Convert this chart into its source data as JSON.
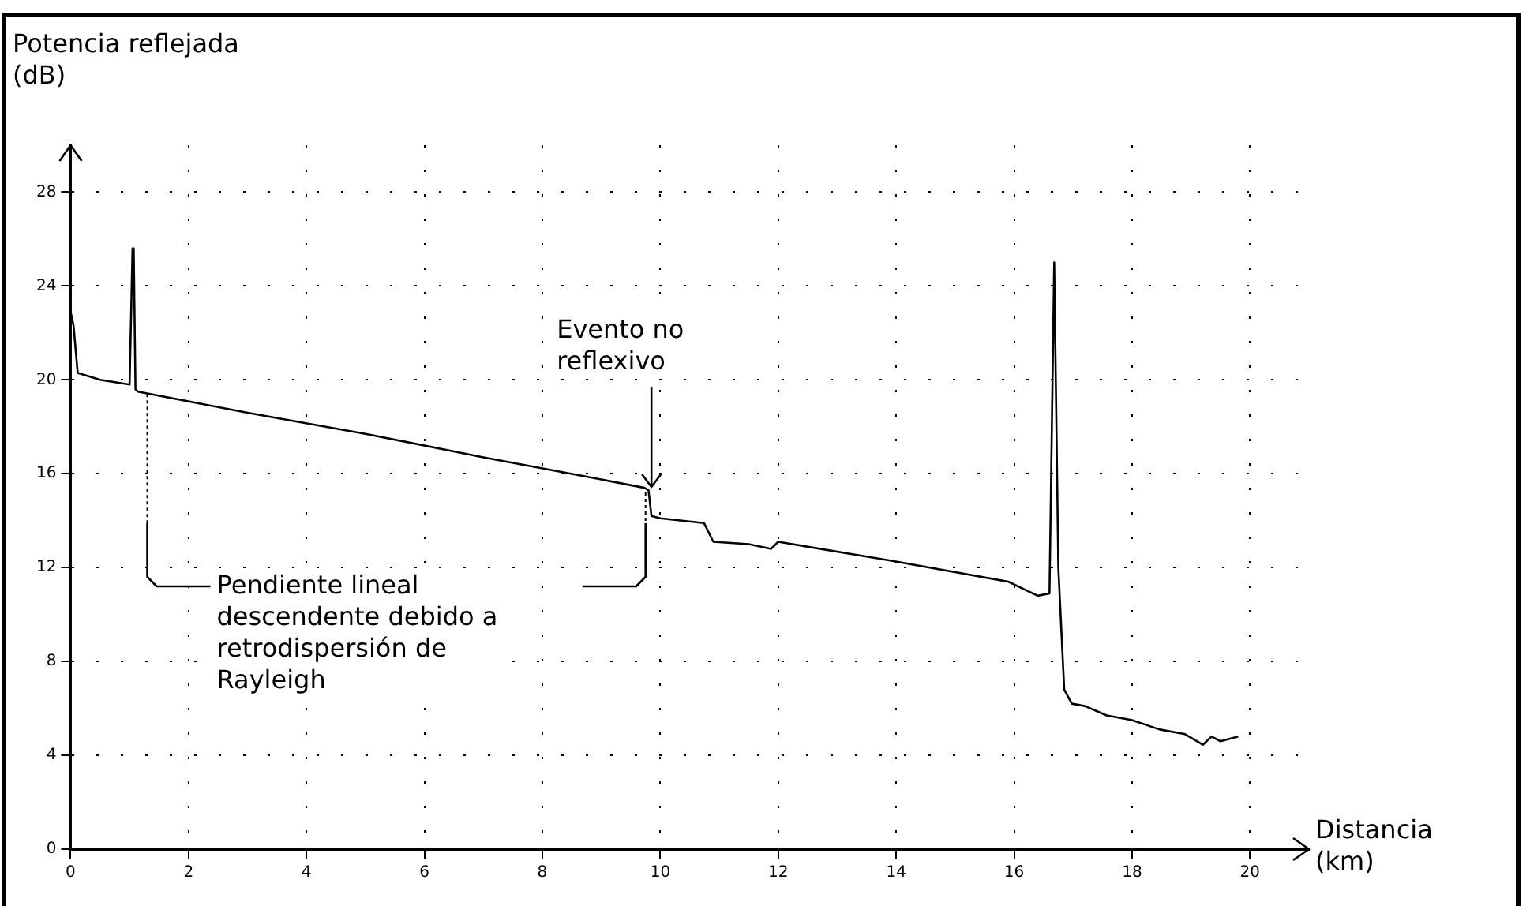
{
  "chart_data": {
    "type": "line",
    "ylabel": "Potencia reflejada\n(dB)",
    "xlabel": "Distancia\n(km)",
    "xlim": [
      0,
      21
    ],
    "xticks": [
      0,
      2,
      4,
      6,
      8,
      10,
      12,
      14,
      16,
      18,
      20
    ],
    "ylim": [
      0,
      30
    ],
    "yticks": [
      0,
      4,
      8,
      12,
      16,
      20,
      24,
      28
    ],
    "grid": true,
    "legend": false,
    "marker": "none",
    "line_style": "solid",
    "series": [
      {
        "color": "#000000",
        "x": [
          0,
          0.05,
          0.12,
          0.5,
          1.0,
          1.05,
          1.07,
          1.1,
          1.14,
          3,
          5,
          7,
          8.7,
          9.73,
          9.8,
          9.85,
          10,
          10.74,
          10.9,
          11.5,
          11.88,
          12.0,
          13.9,
          15.9,
          16.4,
          16.6,
          16.68,
          16.75,
          16.85,
          16.98,
          17.2,
          17.57,
          18.0,
          18.47,
          18.9,
          19.2,
          19.35,
          19.5,
          19.8
        ],
        "values": [
          22.9,
          22.3,
          20.3,
          20.0,
          19.8,
          25.6,
          25.6,
          19.6,
          19.5,
          18.6,
          17.7,
          16.7,
          15.9,
          15.4,
          15.3,
          14.2,
          14.1,
          13.9,
          13.1,
          13.0,
          12.8,
          13.1,
          12.3,
          11.4,
          10.8,
          10.9,
          25.0,
          12,
          6.8,
          6.2,
          6.1,
          5.7,
          5.5,
          5.1,
          4.9,
          4.45,
          4.8,
          4.6,
          4.8
        ]
      }
    ],
    "annotations": [
      {
        "text": "Evento no\nreflexivo",
        "x": 9.85,
        "y": 15.3
      },
      "Pendiente lineal\ndescendente debido a\nretrodispersión de\nRayleigh"
    ]
  }
}
